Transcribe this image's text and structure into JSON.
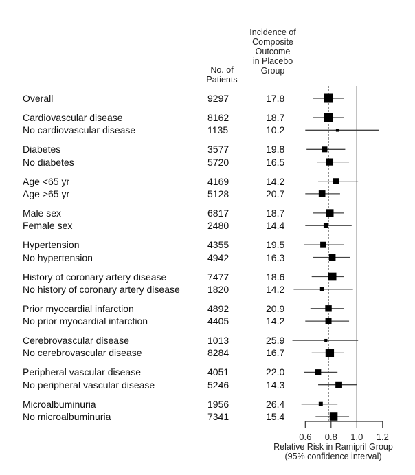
{
  "chart_data": {
    "type": "forest",
    "columns": {
      "patients_header": [
        "No. of",
        "Patients"
      ],
      "incidence_header": [
        "Incidence of",
        "Composite",
        "Outcome",
        "in Placebo",
        "Group"
      ]
    },
    "xlabel": [
      "Relative Risk in Ramipril Group",
      "(95% confidence interval)"
    ],
    "xticks": [
      "0.6",
      "0.8",
      "1.0",
      "1.2"
    ],
    "xlim": [
      0.6,
      1.2
    ],
    "reference_line": 1.0,
    "overall_line": 0.78,
    "groups": [
      {
        "rows": [
          {
            "label": "Overall",
            "patients": "9297",
            "incidence": "17.8",
            "rr": 0.78,
            "lo": 0.66,
            "hi": 0.9
          }
        ]
      },
      {
        "rows": [
          {
            "label": "Cardiovascular disease",
            "patients": "8162",
            "incidence": "18.7",
            "rr": 0.78,
            "lo": 0.66,
            "hi": 0.9
          },
          {
            "label": "No cardiovascular disease",
            "patients": "1135",
            "incidence": "10.2",
            "rr": 0.85,
            "lo": 0.6,
            "hi": 1.17
          }
        ]
      },
      {
        "rows": [
          {
            "label": "Diabetes",
            "patients": "3577",
            "incidence": "19.8",
            "rr": 0.75,
            "lo": 0.61,
            "hi": 0.91
          },
          {
            "label": "No diabetes",
            "patients": "5720",
            "incidence": "16.5",
            "rr": 0.79,
            "lo": 0.69,
            "hi": 0.94
          }
        ]
      },
      {
        "rows": [
          {
            "label": "Age <65 yr",
            "patients": "4169",
            "incidence": "14.2",
            "rr": 0.84,
            "lo": 0.7,
            "hi": 1.01
          },
          {
            "label": "Age >65 yr",
            "patients": "5128",
            "incidence": "20.7",
            "rr": 0.73,
            "lo": 0.6,
            "hi": 0.87
          }
        ]
      },
      {
        "rows": [
          {
            "label": "Male sex",
            "patients": "6817",
            "incidence": "18.7",
            "rr": 0.79,
            "lo": 0.66,
            "hi": 0.9
          },
          {
            "label": "Female sex",
            "patients": "2480",
            "incidence": "14.4",
            "rr": 0.76,
            "lo": 0.6,
            "hi": 0.96
          }
        ]
      },
      {
        "rows": [
          {
            "label": "Hypertension",
            "patients": "4355",
            "incidence": "19.5",
            "rr": 0.74,
            "lo": 0.59,
            "hi": 0.9
          },
          {
            "label": "No hypertension",
            "patients": "4942",
            "incidence": "16.3",
            "rr": 0.81,
            "lo": 0.66,
            "hi": 0.95
          }
        ]
      },
      {
        "rows": [
          {
            "label": "History of coronary artery disease",
            "patients": "7477",
            "incidence": "18.6",
            "rr": 0.81,
            "lo": 0.65,
            "hi": 0.9
          },
          {
            "label": "No history of coronary artery disease",
            "patients": "1820",
            "incidence": "14.2",
            "rr": 0.73,
            "lo": 0.51,
            "hi": 0.97
          }
        ]
      },
      {
        "rows": [
          {
            "label": "Prior myocardial infarction",
            "patients": "4892",
            "incidence": "20.9",
            "rr": 0.78,
            "lo": 0.64,
            "hi": 0.9
          },
          {
            "label": "No prior myocardial infarction",
            "patients": "4405",
            "incidence": "14.2",
            "rr": 0.78,
            "lo": 0.6,
            "hi": 0.94
          }
        ]
      },
      {
        "rows": [
          {
            "label": "Cerebrovascular disease",
            "patients": "1013",
            "incidence": "25.9",
            "rr": 0.76,
            "lo": 0.5,
            "hi": 1.01
          },
          {
            "label": "No cerebrovascular disease",
            "patients": "8284",
            "incidence": "16.7",
            "rr": 0.79,
            "lo": 0.65,
            "hi": 0.9
          }
        ]
      },
      {
        "rows": [
          {
            "label": "Peripheral vascular disease",
            "patients": "4051",
            "incidence": "22.0",
            "rr": 0.7,
            "lo": 0.59,
            "hi": 0.85
          },
          {
            "label": "No peripheral vascular disease",
            "patients": "5246",
            "incidence": "14.3",
            "rr": 0.86,
            "lo": 0.7,
            "hi": 1.0
          }
        ]
      },
      {
        "rows": [
          {
            "label": "Microalbuminuria",
            "patients": "1956",
            "incidence": "26.4",
            "rr": 0.72,
            "lo": 0.57,
            "hi": 0.85
          },
          {
            "label": "No microalbuminuria",
            "patients": "7341",
            "incidence": "15.4",
            "rr": 0.82,
            "lo": 0.68,
            "hi": 0.94
          }
        ]
      }
    ]
  }
}
